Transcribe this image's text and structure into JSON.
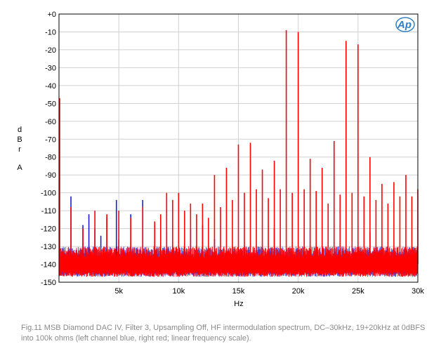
{
  "caption": "Fig.11 MSB Diamond DAC IV, Filter 3, Upsampling Off, HF intermodulation spectrum, DC–30kHz, 19+20kHz at 0dBFS into 100k ohms (left channel blue, right red; linear frequency scale).",
  "logo": {
    "text": "Ap",
    "color": "#2f7fc1"
  },
  "colors": {
    "left_channel": "#1e1ed8",
    "right_channel": "#ff0000",
    "grid": "#d0d0d0",
    "frame": "#000000",
    "background": "#ffffff"
  },
  "chart_data": {
    "type": "line",
    "title": "",
    "xlabel": "Hz",
    "ylabel_chars": [
      "d",
      "B",
      "r",
      "A"
    ],
    "xlim": [
      0,
      30000
    ],
    "ylim": [
      -150,
      0
    ],
    "grid": true,
    "x_ticks": [
      {
        "value": 5000,
        "label": "5k"
      },
      {
        "value": 10000,
        "label": "10k"
      },
      {
        "value": 15000,
        "label": "15k"
      },
      {
        "value": 20000,
        "label": "20k"
      },
      {
        "value": 25000,
        "label": "25k"
      },
      {
        "value": 30000,
        "label": "30k"
      }
    ],
    "y_ticks": [
      {
        "value": 0,
        "label": "+0"
      },
      {
        "value": -10,
        "label": "-10"
      },
      {
        "value": -20,
        "label": "-20"
      },
      {
        "value": -30,
        "label": "-30"
      },
      {
        "value": -40,
        "label": "-40"
      },
      {
        "value": -50,
        "label": "-50"
      },
      {
        "value": -60,
        "label": "-60"
      },
      {
        "value": -70,
        "label": "-70"
      },
      {
        "value": -80,
        "label": "-80"
      },
      {
        "value": -90,
        "label": "-90"
      },
      {
        "value": -100,
        "label": "-100"
      },
      {
        "value": -110,
        "label": "-110"
      },
      {
        "value": -120,
        "label": "-120"
      },
      {
        "value": -130,
        "label": "-130"
      },
      {
        "value": -140,
        "label": "-140"
      },
      {
        "value": -150,
        "label": "-150"
      }
    ],
    "noise_floor": {
      "min": -147,
      "max": -132
    },
    "series": [
      {
        "channel": "left",
        "color": "#1e1ed8",
        "spikes": [
          {
            "x": 1000,
            "y": -102
          },
          {
            "x": 2000,
            "y": -118
          },
          {
            "x": 2500,
            "y": -112
          },
          {
            "x": 3000,
            "y": -120
          },
          {
            "x": 3500,
            "y": -124
          },
          {
            "x": 4000,
            "y": -114
          },
          {
            "x": 4800,
            "y": -104
          },
          {
            "x": 5000,
            "y": -126
          },
          {
            "x": 6000,
            "y": -112
          },
          {
            "x": 7000,
            "y": -104
          },
          {
            "x": 8000,
            "y": -118
          },
          {
            "x": 9000,
            "y": -122
          },
          {
            "x": 11000,
            "y": -120
          },
          {
            "x": 12000,
            "y": -118
          },
          {
            "x": 13000,
            "y": -126
          },
          {
            "x": 18000,
            "y": -120
          },
          {
            "x": 21000,
            "y": -121
          },
          {
            "x": 26000,
            "y": -122
          }
        ]
      },
      {
        "channel": "right",
        "color": "#ff0000",
        "spikes": [
          {
            "x": 0,
            "y": -47
          },
          {
            "x": 1000,
            "y": -108
          },
          {
            "x": 2000,
            "y": -120
          },
          {
            "x": 3000,
            "y": -110
          },
          {
            "x": 4000,
            "y": -112
          },
          {
            "x": 5000,
            "y": -110
          },
          {
            "x": 6000,
            "y": -114
          },
          {
            "x": 7000,
            "y": -108
          },
          {
            "x": 8000,
            "y": -116
          },
          {
            "x": 8500,
            "y": -112
          },
          {
            "x": 9000,
            "y": -100
          },
          {
            "x": 9500,
            "y": -104
          },
          {
            "x": 10000,
            "y": -100
          },
          {
            "x": 10500,
            "y": -110
          },
          {
            "x": 11000,
            "y": -106
          },
          {
            "x": 11500,
            "y": -112
          },
          {
            "x": 12000,
            "y": -106
          },
          {
            "x": 12500,
            "y": -114
          },
          {
            "x": 13000,
            "y": -90
          },
          {
            "x": 13500,
            "y": -108
          },
          {
            "x": 14000,
            "y": -86
          },
          {
            "x": 14500,
            "y": -104
          },
          {
            "x": 15000,
            "y": -73
          },
          {
            "x": 15500,
            "y": -100
          },
          {
            "x": 16000,
            "y": -72
          },
          {
            "x": 16500,
            "y": -98
          },
          {
            "x": 17000,
            "y": -87
          },
          {
            "x": 17500,
            "y": -103
          },
          {
            "x": 18000,
            "y": -82
          },
          {
            "x": 18500,
            "y": -98
          },
          {
            "x": 19000,
            "y": -9
          },
          {
            "x": 19500,
            "y": -100
          },
          {
            "x": 20000,
            "y": -10
          },
          {
            "x": 20500,
            "y": -98
          },
          {
            "x": 21000,
            "y": -81
          },
          {
            "x": 21500,
            "y": -99
          },
          {
            "x": 22000,
            "y": -86
          },
          {
            "x": 22500,
            "y": -106
          },
          {
            "x": 23000,
            "y": -71
          },
          {
            "x": 23500,
            "y": -101
          },
          {
            "x": 24000,
            "y": -15
          },
          {
            "x": 24500,
            "y": -100
          },
          {
            "x": 25000,
            "y": -17
          },
          {
            "x": 25500,
            "y": -102
          },
          {
            "x": 26000,
            "y": -80
          },
          {
            "x": 26500,
            "y": -104
          },
          {
            "x": 27000,
            "y": -95
          },
          {
            "x": 27500,
            "y": -106
          },
          {
            "x": 28000,
            "y": -94
          },
          {
            "x": 28500,
            "y": -102
          },
          {
            "x": 29000,
            "y": -90
          },
          {
            "x": 29500,
            "y": -102
          },
          {
            "x": 30000,
            "y": -98
          }
        ]
      }
    ]
  }
}
